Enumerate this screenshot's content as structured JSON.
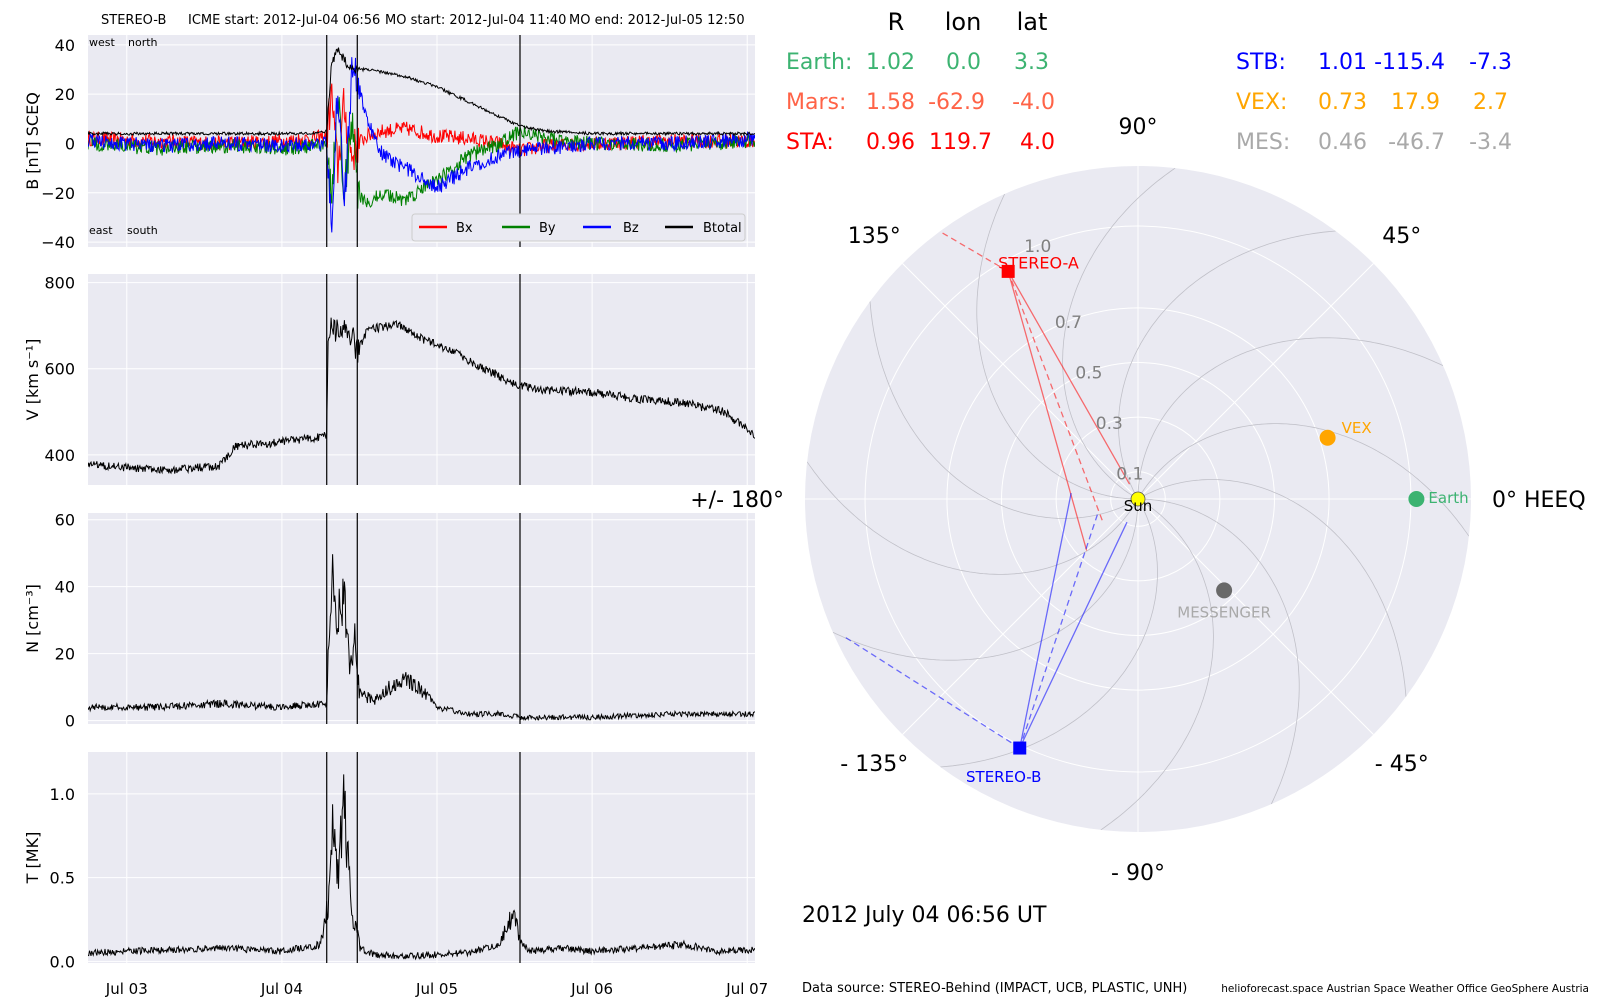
{
  "header": {
    "spacecraft": "STEREO-B",
    "icme_start": "ICME start: 2012-Jul-04 06:56",
    "mo_start": "MO start: 2012-Jul-04 11:40",
    "mo_end": "MO end: 2012-Jul-05 12:50"
  },
  "colors": {
    "panel_bg": "#eaeaf2",
    "grid": "#ffffff",
    "bx": "#ff0000",
    "by": "#008000",
    "bz": "#0000ff",
    "btotal": "#000000",
    "earth": "#3cb371",
    "mars": "#ff6347",
    "sta": "#ff0000",
    "stb": "#0000ff",
    "vex": "#ffa500",
    "mes": "#a9a9a9",
    "sun": "#ffff00",
    "messenger_dot": "#696969"
  },
  "time_axis": {
    "ticks": [
      "Jul 03",
      "Jul 04",
      "Jul 05",
      "Jul 06",
      "Jul 07"
    ],
    "tick_days": [
      3,
      4,
      5,
      6,
      7
    ],
    "range_days": [
      2.75,
      7.05
    ],
    "event_lines_days": [
      4.289,
      4.486,
      5.535
    ]
  },
  "chart_data": [
    {
      "type": "line",
      "ylabel": "B [nT] SCEQ",
      "ylim": [
        -42,
        44
      ],
      "yticks": [
        "40",
        "20",
        "0",
        "−20",
        "−40"
      ],
      "ytick_values": [
        40,
        20,
        0,
        -20,
        -40
      ],
      "annotations": [
        "west",
        "north",
        "east",
        "south"
      ],
      "legend": [
        "Bx",
        "By",
        "Bz",
        "Btotal"
      ],
      "legend_position": "lower-right",
      "series": [
        {
          "name": "Bx",
          "x": [
            2.75,
            3.2,
            3.6,
            4.0,
            4.2,
            4.289,
            4.32,
            4.36,
            4.4,
            4.45,
            4.486,
            4.55,
            4.65,
            4.8,
            5.0,
            5.2,
            5.4,
            5.535,
            5.7,
            6.0,
            6.5,
            7.05
          ],
          "y": [
            2,
            1,
            0,
            1,
            2,
            3,
            20,
            -10,
            15,
            -5,
            0,
            3,
            5,
            6,
            3,
            2,
            0,
            -3,
            -1,
            0,
            1,
            1
          ]
        },
        {
          "name": "By",
          "x": [
            2.75,
            3.2,
            3.6,
            4.0,
            4.2,
            4.289,
            4.32,
            4.36,
            4.4,
            4.45,
            4.486,
            4.55,
            4.65,
            4.8,
            5.0,
            5.2,
            5.4,
            5.535,
            5.7,
            6.0,
            6.5,
            7.05
          ],
          "y": [
            0,
            -2,
            -1,
            -2,
            -1,
            0,
            -25,
            20,
            -20,
            10,
            -20,
            -25,
            -20,
            -23,
            -15,
            -5,
            0,
            5,
            2,
            0,
            -1,
            1
          ]
        },
        {
          "name": "Bz",
          "x": [
            2.75,
            3.2,
            3.6,
            4.0,
            4.2,
            4.289,
            4.32,
            4.36,
            4.4,
            4.45,
            4.486,
            4.55,
            4.65,
            4.8,
            5.0,
            5.2,
            5.4,
            5.535,
            5.7,
            6.0,
            6.5,
            7.05
          ],
          "y": [
            1,
            -1,
            0,
            -1,
            0,
            0,
            -30,
            25,
            -25,
            30,
            25,
            10,
            -5,
            -10,
            -18,
            -10,
            -5,
            -3,
            -2,
            0,
            0,
            2
          ]
        },
        {
          "name": "Btotal",
          "x": [
            2.75,
            3.2,
            3.6,
            4.0,
            4.2,
            4.289,
            4.32,
            4.36,
            4.4,
            4.45,
            4.486,
            4.55,
            4.65,
            4.8,
            5.0,
            5.2,
            5.4,
            5.535,
            5.7,
            6.0,
            6.5,
            7.05
          ],
          "y": [
            4,
            4,
            4,
            4,
            4,
            5,
            32,
            38,
            34,
            30,
            30,
            30,
            29,
            27,
            23,
            17,
            11,
            7,
            5,
            4,
            4,
            4
          ]
        }
      ]
    },
    {
      "type": "line",
      "ylabel": "V [km s⁻¹]",
      "ylim": [
        330,
        820
      ],
      "yticks": [
        "800",
        "600",
        "400"
      ],
      "ytick_values": [
        800,
        600,
        400
      ],
      "series": [
        {
          "name": "",
          "x": [
            2.75,
            3.0,
            3.3,
            3.6,
            3.7,
            4.0,
            4.2,
            4.289,
            4.3,
            4.45,
            4.486,
            4.55,
            4.75,
            4.9,
            5.1,
            5.3,
            5.5,
            5.7,
            6.0,
            6.3,
            6.6,
            6.85,
            7.05
          ],
          "y": [
            380,
            370,
            365,
            375,
            420,
            430,
            440,
            445,
            690,
            680,
            640,
            690,
            705,
            670,
            640,
            600,
            565,
            550,
            545,
            530,
            520,
            500,
            445
          ]
        }
      ]
    },
    {
      "type": "line",
      "ylabel": "N [cm⁻³]",
      "ylim": [
        -1,
        62
      ],
      "yticks": [
        "60",
        "40",
        "20",
        "0"
      ],
      "ytick_values": [
        60,
        40,
        20,
        0
      ],
      "series": [
        {
          "name": "",
          "x": [
            2.75,
            3.2,
            3.6,
            4.0,
            4.2,
            4.289,
            4.3,
            4.33,
            4.36,
            4.4,
            4.44,
            4.47,
            4.5,
            4.6,
            4.7,
            4.8,
            4.9,
            5.0,
            5.2,
            5.4,
            5.535,
            5.7,
            6.0,
            6.5,
            7.05
          ],
          "y": [
            4,
            4,
            5,
            4,
            5,
            5,
            20,
            50,
            30,
            40,
            15,
            25,
            8,
            6,
            10,
            13,
            9,
            4,
            2,
            2,
            1,
            1,
            1,
            2,
            2
          ]
        }
      ]
    },
    {
      "type": "line",
      "ylabel": "T [MK]",
      "ylim": [
        -0.01,
        1.25
      ],
      "yticks": [
        "1.0",
        "0.5",
        "0.0"
      ],
      "ytick_values": [
        1.0,
        0.5,
        0.0
      ],
      "series": [
        {
          "name": "",
          "x": [
            2.75,
            3.0,
            3.3,
            3.6,
            4.0,
            4.25,
            4.3,
            4.33,
            4.36,
            4.4,
            4.45,
            4.5,
            4.6,
            4.8,
            5.0,
            5.2,
            5.4,
            5.5,
            5.535,
            5.6,
            5.8,
            6.0,
            6.3,
            6.6,
            6.8,
            7.05
          ],
          "y": [
            0.05,
            0.06,
            0.07,
            0.08,
            0.06,
            0.1,
            0.35,
            0.9,
            0.5,
            0.95,
            0.3,
            0.08,
            0.04,
            0.03,
            0.04,
            0.05,
            0.1,
            0.3,
            0.12,
            0.06,
            0.08,
            0.06,
            0.08,
            0.1,
            0.06,
            0.07
          ]
        }
      ]
    },
    {
      "type": "scatter",
      "title": "",
      "table": {
        "headers": [
          "R",
          "lon",
          "lat"
        ],
        "rows": [
          {
            "label": "Earth:",
            "R": "1.02",
            "lon": "0.0",
            "lat": "3.3",
            "color": "#3cb371"
          },
          {
            "label": "Mars:",
            "R": "1.58",
            "lon": "-62.9",
            "lat": "-4.0",
            "color": "#ff6347"
          },
          {
            "label": "STA:",
            "R": "0.96",
            "lon": "119.7",
            "lat": "4.0",
            "color": "#ff0000"
          },
          {
            "label": "STB:",
            "R": "1.01",
            "lon": "-115.4",
            "lat": "-7.3",
            "color": "#0000ff"
          },
          {
            "label": "VEX:",
            "R": "0.73",
            "lon": "17.9",
            "lat": "2.7",
            "color": "#ffa500"
          },
          {
            "label": "MES:",
            "R": "0.46",
            "lon": "-46.7",
            "lat": "-3.4",
            "color": "#a9a9a9"
          }
        ]
      },
      "angle_labels": [
        "90°",
        "45°",
        "0° HEEQ",
        "- 45°",
        "- 90°",
        "- 135°",
        "+/- 180°",
        "135°"
      ],
      "angle_values": [
        90,
        45,
        0,
        -45,
        -90,
        -135,
        180,
        135
      ],
      "radial_labels": [
        "0.1",
        "0.3",
        "0.5",
        "0.7",
        "1.0"
      ],
      "radial_values": [
        0.1,
        0.3,
        0.5,
        0.7,
        1.0
      ],
      "rmax": 1.22,
      "bodies": [
        {
          "name": "Sun",
          "label": "Sun",
          "r": 0,
          "lon": 0,
          "color": "#ffff00",
          "marker": "circle"
        },
        {
          "name": "Earth",
          "label": "Earth",
          "r": 1.02,
          "lon": 0.0,
          "color": "#3cb371",
          "marker": "circle"
        },
        {
          "name": "VEX",
          "label": "VEX",
          "r": 0.73,
          "lon": 17.9,
          "color": "#ffa500",
          "marker": "circle"
        },
        {
          "name": "MESSENGER",
          "label": "MESSENGER",
          "r": 0.46,
          "lon": -46.7,
          "color": "#696969",
          "marker": "circle"
        },
        {
          "name": "STEREO-A",
          "label": "STEREO-A",
          "r": 0.96,
          "lon": 119.7,
          "color": "#ff0000",
          "marker": "square"
        },
        {
          "name": "STEREO-B",
          "label": "STEREO-B",
          "r": 1.01,
          "lon": -115.4,
          "color": "#0000ff",
          "marker": "square"
        }
      ],
      "date_label": "2012 July 04  06:56 UT"
    }
  ],
  "footer": {
    "data_source": "Data source: STEREO-Behind (IMPACT, UCB, PLASTIC, UNH)",
    "credits": "helioforecast.space   Austrian Space Weather Office   GeoSphere Austria"
  }
}
